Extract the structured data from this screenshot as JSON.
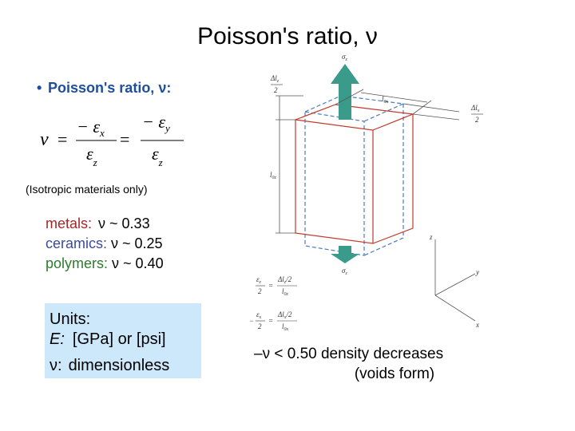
{
  "title": "Poisson's ratio, ν",
  "bullet": "Poisson's ratio, ν:",
  "formula": {
    "lhs": "ν",
    "equals": "=",
    "terms": [
      {
        "numerator": "− ε",
        "numerator_sub": "x",
        "denominator": "ε",
        "denominator_sub": "z"
      },
      {
        "numerator": "− ε",
        "numerator_sub": "y",
        "denominator": "ε",
        "denominator_sub": "z"
      }
    ]
  },
  "note": "(Isotropic materials only)",
  "materials": [
    {
      "label": "metals:",
      "value": "ν ~ 0.33"
    },
    {
      "label": "ceramics:",
      "value": "ν ~ 0.25"
    },
    {
      "label": "polymers:",
      "value": "ν ~ 0.40"
    }
  ],
  "units": {
    "heading": "Units:",
    "lines": [
      {
        "symbol": "E:",
        "text": "[GPa] or [psi]"
      },
      {
        "symbol": "ν:",
        "text": "dimensionless"
      }
    ]
  },
  "remark": {
    "line1": "–ν < 0.50  density decreases",
    "line2": "(voids form)"
  },
  "diagram": {
    "stress": {
      "symbol": "σ",
      "sub": "z"
    },
    "dlz_half": {
      "num": "Δl",
      "sub": "z",
      "den": "2"
    },
    "dlx_half": {
      "num": "Δl",
      "sub": "x",
      "den": "2"
    },
    "l0x": {
      "symbol": "l",
      "sub": "0x"
    },
    "l0z": {
      "symbol": "l",
      "sub": "0z"
    },
    "axes": {
      "z": "z",
      "y": "y",
      "x": "x"
    },
    "eq_z": {
      "num": "ε",
      "sub": "z",
      "den": "2",
      "equals": "=",
      "rnum": "Δl",
      "rsub": "z",
      "rden_suffix": "/2",
      "rden": "l",
      "rden_sub": "0z"
    },
    "eq_x": {
      "minus": "−",
      "num": "ε",
      "sub": "x",
      "den": "2",
      "equals": "=",
      "rnum": "Δl",
      "rsub": "x",
      "rden_suffix": "/2",
      "rden": "l",
      "rden_sub": "0x"
    }
  }
}
